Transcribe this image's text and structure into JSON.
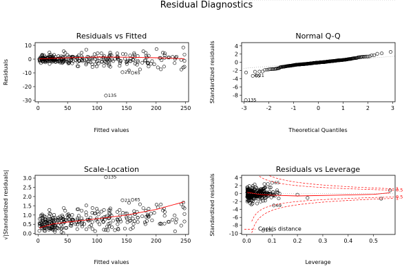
{
  "title": "Residual Diagnostics",
  "chart_data": [
    {
      "type": "scatter",
      "title": "Residuals vs Fitted",
      "xlabel": "Fitted values",
      "ylabel": "Residuals",
      "xlim": [
        -5,
        255
      ],
      "ylim": [
        -31,
        12
      ],
      "xticks": [
        "0",
        "50",
        "100",
        "150",
        "200",
        "250"
      ],
      "xtick_values": [
        0,
        50,
        100,
        150,
        200,
        250
      ],
      "yticks": [
        "-30",
        "-20",
        "-10",
        "0",
        "10"
      ],
      "ytick_values": [
        -30,
        -20,
        -10,
        0,
        10
      ],
      "smoother": {
        "color": "#ff0000",
        "x": [
          2,
          50,
          100,
          150,
          200,
          248
        ],
        "y": [
          0.2,
          1.0,
          1.5,
          1.4,
          1.0,
          0.3
        ]
      },
      "reference_line": {
        "y": 0,
        "style": "dotted"
      },
      "labeled_points": [
        {
          "label": "135",
          "x": 115,
          "y": -26.5
        },
        {
          "label": "21",
          "x": 143,
          "y": -9.5
        },
        {
          "label": "65",
          "x": 160,
          "y": -10.0
        }
      ],
      "points_summary": "about 300 points clustered near 0 across fitted values 0 to 250"
    },
    {
      "type": "scatter",
      "title": "Normal Q-Q",
      "xlabel": "Theoretical Quantiles",
      "ylabel": "Standardized residuals",
      "xlim": [
        -3.1,
        3.1
      ],
      "ylim": [
        -9.6,
        4.8
      ],
      "xticks": [
        "-3",
        "-2",
        "-1",
        "0",
        "1",
        "2",
        "3"
      ],
      "xtick_values": [
        -3,
        -2,
        -1,
        0,
        1,
        2,
        3
      ],
      "yticks": [
        "-8",
        "-6",
        "-4",
        "-2",
        "0",
        "2",
        "4"
      ],
      "ytick_values": [
        -8,
        -6,
        -4,
        -2,
        0,
        2,
        4
      ],
      "reference_line": {
        "style": "dotted",
        "x": [
          -3.1,
          3.1
        ],
        "y": [
          -1.5,
          1.5
        ]
      },
      "labeled_points": [
        {
          "label": "135",
          "x": -2.93,
          "y": -9.2
        },
        {
          "label": "65",
          "x": -2.65,
          "y": -3.3
        },
        {
          "label": "21",
          "x": -2.5,
          "y": -3.2
        }
      ]
    },
    {
      "type": "scatter",
      "title": "Scale-Location",
      "xlabel": "Fitted values",
      "ylabel": "√|Standardized residuals|",
      "xlim": [
        -5,
        255
      ],
      "ylim": [
        -0.05,
        3.15
      ],
      "xticks": [
        "0",
        "50",
        "100",
        "150",
        "200",
        "250"
      ],
      "xtick_values": [
        0,
        50,
        100,
        150,
        200,
        250
      ],
      "yticks": [
        "0.0",
        "0.5",
        "1.0",
        "1.5",
        "2.0",
        "2.5",
        "3.0"
      ],
      "ytick_values": [
        0,
        0.5,
        1,
        1.5,
        2,
        2.5,
        3
      ],
      "smoother": {
        "color": "#ff0000",
        "x": [
          2,
          25,
          50,
          100,
          150,
          200,
          248
        ],
        "y": [
          0.3,
          0.52,
          0.62,
          0.8,
          1.0,
          1.3,
          1.72
        ]
      },
      "labeled_points": [
        {
          "label": "135",
          "x": 115,
          "y": 3.05
        },
        {
          "label": "21",
          "x": 143,
          "y": 1.8
        },
        {
          "label": "65",
          "x": 160,
          "y": 1.82
        }
      ]
    },
    {
      "type": "scatter",
      "title": "Residuals vs Leverage",
      "xlabel": "Leverage",
      "ylabel": "Standardized residuals",
      "xlim": [
        -0.02,
        0.585
      ],
      "ylim": [
        -10.3,
        4.6
      ],
      "xticks": [
        "0.0",
        "0.1",
        "0.2",
        "0.3",
        "0.4",
        "0.5"
      ],
      "xtick_values": [
        0,
        0.1,
        0.2,
        0.3,
        0.4,
        0.5
      ],
      "yticks": [
        "-10",
        "-8",
        "-6",
        "-4",
        "-2",
        "0",
        "2",
        "4"
      ],
      "ytick_values": [
        -10,
        -8,
        -6,
        -4,
        -2,
        0,
        2,
        4
      ],
      "smoother": {
        "color": "#ff0000",
        "x": [
          0.002,
          0.05,
          0.1,
          0.2,
          0.35,
          0.5,
          0.565
        ],
        "y": [
          0.3,
          -0.2,
          -0.4,
          -0.6,
          -0.4,
          -0.2,
          0.2
        ]
      },
      "cooks_levels": [
        {
          "label": "0.5",
          "level": 0.5
        },
        {
          "label": "1",
          "level": 1
        }
      ],
      "cooks_legend": "Cook's distance",
      "labeled_points": [
        {
          "label": "135",
          "x": 0.065,
          "y": -9.3
        },
        {
          "label": "65",
          "x": 0.1,
          "y": 2.7
        },
        {
          "label": "69",
          "x": 0.107,
          "y": -3.0
        }
      ]
    }
  ]
}
